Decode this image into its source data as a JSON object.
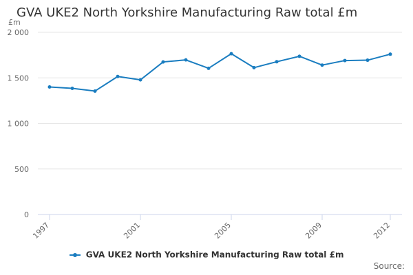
{
  "title": "GVA UKE2 North Yorkshire Manufacturing Raw total £m",
  "unit_label": "£m",
  "legend_label": "GVA UKE2 North Yorkshire Manufacturing Raw total £m",
  "source_label": "Source:",
  "colors": {
    "series": "#1a7dc0",
    "grid": "#e6e6e6",
    "axis": "#ccd6eb",
    "text": "#333333"
  },
  "chart_data": {
    "type": "line",
    "title": "GVA UKE2 North Yorkshire Manufacturing Raw total £m",
    "xlabel": "",
    "ylabel": "£m",
    "ylim": [
      0,
      2000
    ],
    "yticks": [
      0,
      500,
      1000,
      1500,
      2000
    ],
    "ytick_labels": [
      "0",
      "500",
      "1 000",
      "1 500",
      "2 000"
    ],
    "xticks_shown": [
      "1997",
      "2001",
      "2005",
      "2009",
      "2012"
    ],
    "grid": true,
    "legend": "bottom-center",
    "x": [
      "1997",
      "1998",
      "1999",
      "2000",
      "2001",
      "2002",
      "2003",
      "2004",
      "2005",
      "2006",
      "2007",
      "2008",
      "2009",
      "2010",
      "2011",
      "2012"
    ],
    "series": [
      {
        "name": "GVA UKE2 North Yorkshire Manufacturing Raw total £m",
        "values": [
          1400,
          1385,
          1355,
          1515,
          1478,
          1675,
          1697,
          1605,
          1765,
          1612,
          1677,
          1737,
          1640,
          1690,
          1694,
          1760
        ]
      }
    ]
  }
}
